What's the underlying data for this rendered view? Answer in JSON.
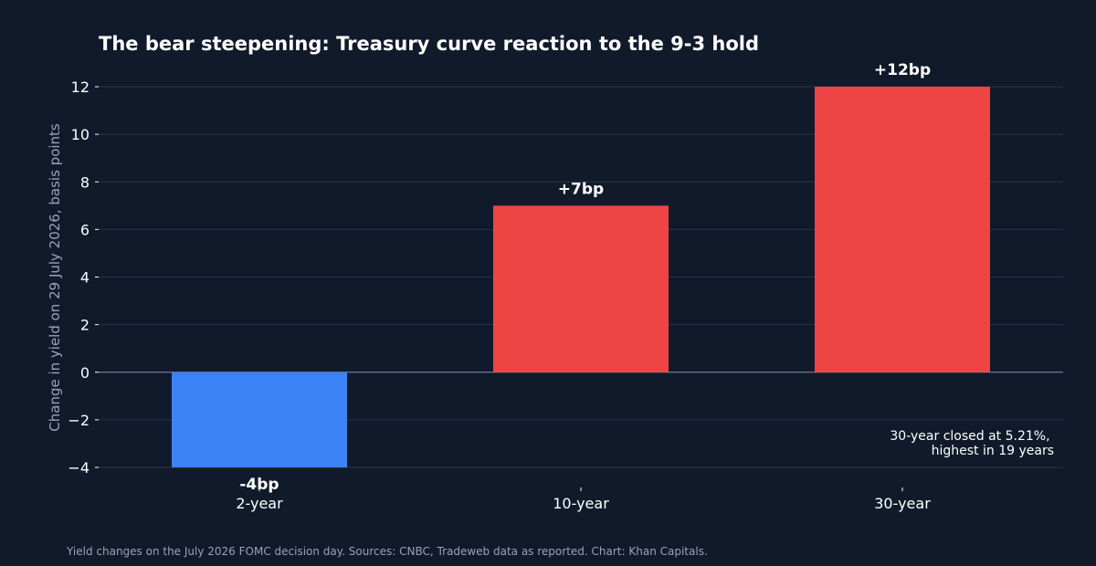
{
  "chart_data": {
    "type": "bar",
    "title": "The bear steepening: Treasury curve reaction to the 9-3 hold",
    "xlabel": "",
    "ylabel": "Change in yield on 29 July 2026, basis points",
    "categories": [
      "2-year",
      "10-year",
      "30-year"
    ],
    "values": [
      -4,
      7,
      12
    ],
    "data_labels": [
      "-4bp",
      "+7bp",
      "+12bp"
    ],
    "colors": [
      "#3b82f6",
      "#ef4444",
      "#ef4444"
    ],
    "ylim": [
      -4,
      12
    ],
    "yticks": [
      -4,
      -2,
      0,
      2,
      4,
      6,
      8,
      10,
      12
    ],
    "ytick_labels": [
      "−4",
      "−2",
      "0",
      "2",
      "4",
      "6",
      "8",
      "10",
      "12"
    ],
    "grid": true,
    "annotation": [
      "30-year closed at 5.21%,",
      "highest in 19 years"
    ],
    "footer": "Yield changes on the July 2026 FOMC decision day. Sources: CNBC, Tradeweb data as reported. Chart: Khan Capitals."
  },
  "colors": {
    "background": "#111a2b",
    "negative_bar": "#3b82f6",
    "positive_bar": "#ef4444"
  }
}
